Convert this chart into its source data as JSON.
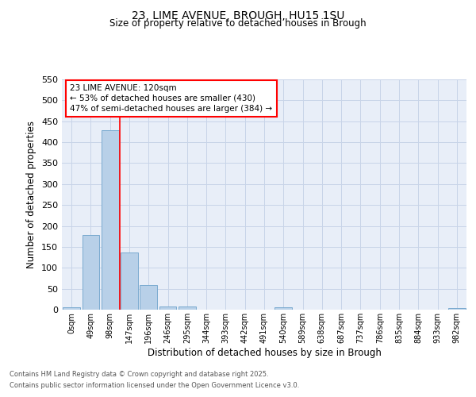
{
  "title": "23, LIME AVENUE, BROUGH, HU15 1SU",
  "subtitle": "Size of property relative to detached houses in Brough",
  "xlabel": "Distribution of detached houses by size in Brough",
  "ylabel": "Number of detached properties",
  "footnote1": "Contains HM Land Registry data © Crown copyright and database right 2025.",
  "footnote2": "Contains public sector information licensed under the Open Government Licence v3.0.",
  "bar_color": "#b8d0e8",
  "bar_edge_color": "#7aaad0",
  "bg_color": "#e8eef8",
  "grid_color": "#c8d4e8",
  "red_line_x": 2.5,
  "annotation_text": "23 LIME AVENUE: 120sqm\n← 53% of detached houses are smaller (430)\n47% of semi-detached houses are larger (384) →",
  "bins": [
    "0sqm",
    "49sqm",
    "98sqm",
    "147sqm",
    "196sqm",
    "246sqm",
    "295sqm",
    "344sqm",
    "393sqm",
    "442sqm",
    "491sqm",
    "540sqm",
    "589sqm",
    "638sqm",
    "687sqm",
    "737sqm",
    "786sqm",
    "835sqm",
    "884sqm",
    "933sqm",
    "982sqm"
  ],
  "values": [
    5,
    178,
    428,
    136,
    58,
    8,
    7,
    0,
    0,
    0,
    0,
    5,
    0,
    0,
    0,
    0,
    0,
    0,
    0,
    0,
    3
  ],
  "ylim": [
    0,
    550
  ],
  "yticks": [
    0,
    50,
    100,
    150,
    200,
    250,
    300,
    350,
    400,
    450,
    500,
    550
  ]
}
